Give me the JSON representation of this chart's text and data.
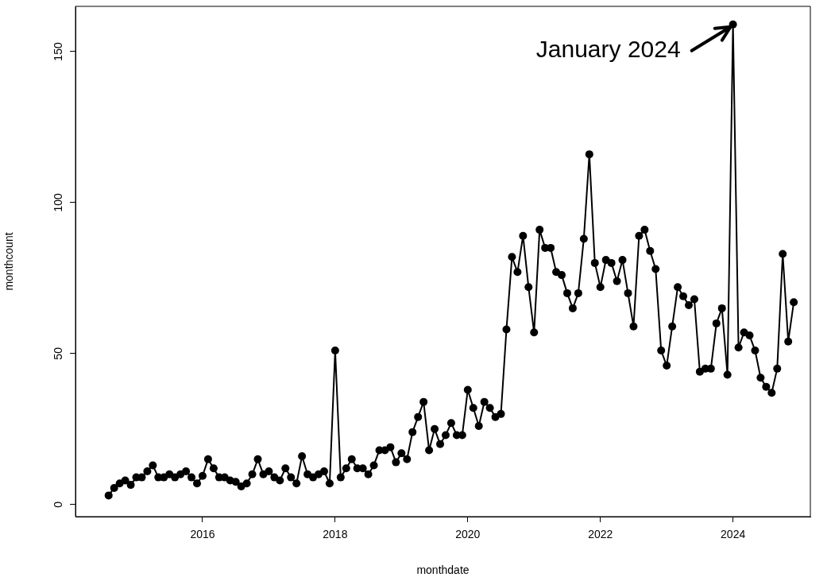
{
  "chart_data": {
    "type": "line",
    "xlabel": "monthdate",
    "ylabel": "monthcount",
    "x": [
      "2014-08",
      "2014-09",
      "2014-10",
      "2014-11",
      "2014-12",
      "2015-01",
      "2015-02",
      "2015-03",
      "2015-04",
      "2015-05",
      "2015-06",
      "2015-07",
      "2015-08",
      "2015-09",
      "2015-10",
      "2015-11",
      "2015-12",
      "2016-01",
      "2016-02",
      "2016-03",
      "2016-04",
      "2016-05",
      "2016-06",
      "2016-07",
      "2016-08",
      "2016-09",
      "2016-10",
      "2016-11",
      "2016-12",
      "2017-01",
      "2017-02",
      "2017-03",
      "2017-04",
      "2017-05",
      "2017-06",
      "2017-07",
      "2017-08",
      "2017-09",
      "2017-10",
      "2017-11",
      "2017-12",
      "2018-01",
      "2018-02",
      "2018-03",
      "2018-04",
      "2018-05",
      "2018-06",
      "2018-07",
      "2018-08",
      "2018-09",
      "2018-10",
      "2018-11",
      "2018-12",
      "2019-01",
      "2019-02",
      "2019-03",
      "2019-04",
      "2019-05",
      "2019-06",
      "2019-07",
      "2019-08",
      "2019-09",
      "2019-10",
      "2019-11",
      "2019-12",
      "2020-01",
      "2020-02",
      "2020-03",
      "2020-04",
      "2020-05",
      "2020-06",
      "2020-07",
      "2020-08",
      "2020-09",
      "2020-10",
      "2020-11",
      "2020-12",
      "2021-01",
      "2021-02",
      "2021-03",
      "2021-04",
      "2021-05",
      "2021-06",
      "2021-07",
      "2021-08",
      "2021-09",
      "2021-10",
      "2021-11",
      "2021-12",
      "2022-01",
      "2022-02",
      "2022-03",
      "2022-04",
      "2022-05",
      "2022-06",
      "2022-07",
      "2022-08",
      "2022-09",
      "2022-10",
      "2022-11",
      "2022-12",
      "2023-01",
      "2023-02",
      "2023-03",
      "2023-04",
      "2023-05",
      "2023-06",
      "2023-07",
      "2023-08",
      "2023-09",
      "2023-10",
      "2023-11",
      "2023-12",
      "2024-01",
      "2024-02",
      "2024-03",
      "2024-04",
      "2024-05",
      "2024-06",
      "2024-07",
      "2024-08",
      "2024-09",
      "2024-10",
      "2024-11",
      "2024-12"
    ],
    "series": [
      {
        "color": "#000000",
        "values": [
          3,
          5.5,
          7,
          8,
          6.5,
          9,
          9,
          11,
          13,
          9,
          9,
          10,
          9,
          10,
          11,
          9,
          7,
          9.5,
          15,
          12,
          9,
          9,
          8,
          7.5,
          6,
          7,
          10,
          15,
          10,
          11,
          9,
          8,
          12,
          9,
          7,
          16,
          10,
          9,
          10,
          11,
          7,
          51,
          9,
          12,
          15,
          12,
          12,
          10,
          13,
          18,
          18,
          19,
          14,
          17,
          15,
          24,
          29,
          34,
          18,
          25,
          20,
          23,
          27,
          23,
          23,
          38,
          32,
          26,
          34,
          32,
          29,
          30,
          58,
          82,
          77,
          89,
          72,
          57,
          91,
          85,
          85,
          77,
          76,
          70,
          65,
          70,
          88,
          116,
          80,
          72,
          81,
          80,
          74,
          81,
          70,
          59,
          89,
          91,
          84,
          78,
          51,
          46,
          59,
          72,
          69,
          66,
          68,
          44,
          45,
          45,
          60,
          65,
          43,
          159,
          52,
          57,
          56,
          51,
          42,
          39,
          37,
          45,
          83,
          54,
          67
        ]
      }
    ],
    "xlim": [
      "2014-02",
      "2025-03"
    ],
    "xticks": [
      "2016",
      "2018",
      "2020",
      "2022",
      "2024"
    ],
    "ylim": [
      -4,
      165
    ],
    "yticks": [
      0,
      50,
      100,
      150
    ],
    "grid": false,
    "legend": false,
    "marker": "circle",
    "line_style": "solid",
    "annotations": [
      {
        "text": "January 2024",
        "x": "2024-01",
        "y": 159
      }
    ]
  }
}
